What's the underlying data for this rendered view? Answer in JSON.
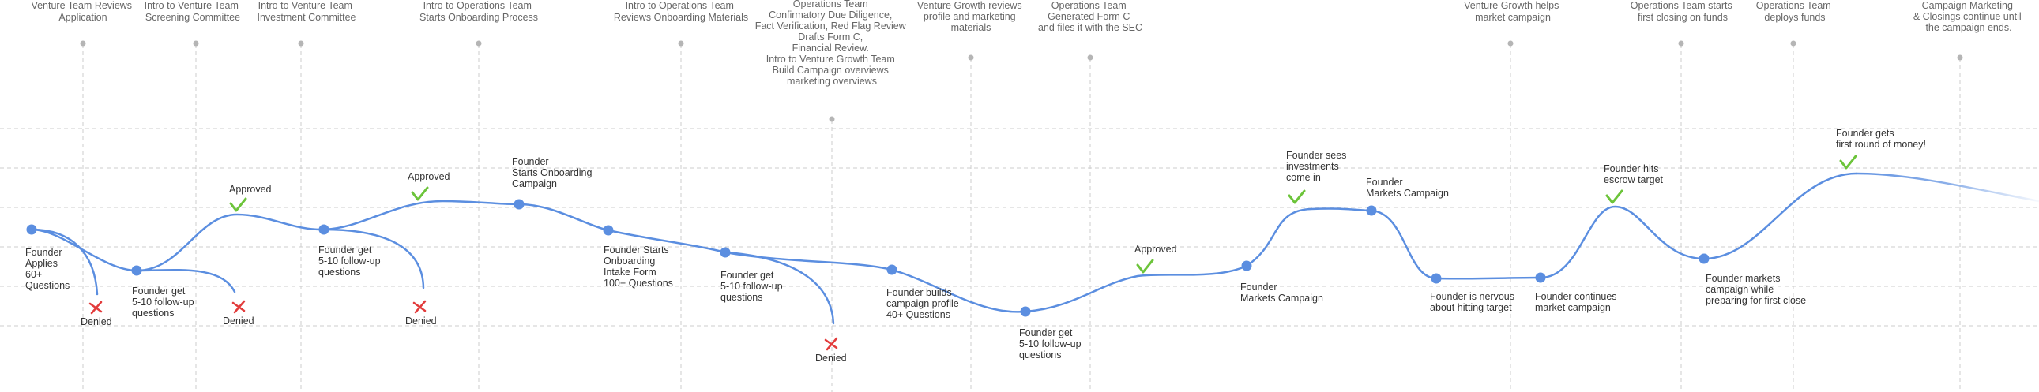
{
  "colors": {
    "line": "#5b8ee0",
    "node": "#5b8ee0",
    "grid": "#c8c8c8",
    "team_dot": "#b5b5b5",
    "check": "#6cc43a",
    "cross": "#e23b3b"
  },
  "team_steps": [
    {
      "id": "t1",
      "lines": [
        "Venture Team Reviews",
        "Application"
      ]
    },
    {
      "id": "t2",
      "lines": [
        "Intro to Venture Team",
        "Screening Committee"
      ]
    },
    {
      "id": "t3",
      "lines": [
        "Intro to Venture Team",
        "Investment Committee"
      ]
    },
    {
      "id": "t4",
      "lines": [
        "Intro to Operations Team",
        "Starts Onboarding Process"
      ]
    },
    {
      "id": "t5",
      "lines": [
        "Intro to Operations Team",
        "Reviews Onboarding Materials"
      ]
    },
    {
      "id": "t6",
      "lines": [
        "Operations Team",
        "Confirmatory Due Diligence,",
        "Fact Verification, Red Flag Review",
        "Drafts Form C,",
        "Financial Review.",
        "",
        "Intro to Venture Growth Team",
        "Build Campaign overviews",
        "marketing overviews"
      ]
    },
    {
      "id": "t7",
      "lines": [
        "Venture Growth reviews",
        "profile and marketing",
        "materials"
      ]
    },
    {
      "id": "t8",
      "lines": [
        "Operations Team",
        "Generated Form C",
        "and files it with the SEC"
      ]
    },
    {
      "id": "t9",
      "lines": [
        "Venture Growth helps",
        "market campaign"
      ]
    },
    {
      "id": "t10",
      "lines": [
        "Operations Team starts",
        "first closing on funds"
      ]
    },
    {
      "id": "t11",
      "lines": [
        "Operations Team",
        "deploys funds"
      ]
    },
    {
      "id": "t12",
      "lines": [
        "Campaign Marketing",
        "& Closings continue until",
        "the campaign ends."
      ]
    }
  ],
  "founder_steps": [
    {
      "id": "f1",
      "lines": [
        "Founder",
        "Applies",
        "60+",
        "Questions"
      ]
    },
    {
      "id": "f2",
      "lines": [
        "Founder get",
        "5-10 follow-up",
        "questions"
      ]
    },
    {
      "id": "f3",
      "lines": [
        "Founder get",
        "5-10 follow-up",
        "questions"
      ]
    },
    {
      "id": "f4",
      "lines": [
        "Founder",
        "Starts Onboarding",
        "Campaign"
      ]
    },
    {
      "id": "f5",
      "lines": [
        "Founder Starts",
        "Onboarding",
        "Intake Form",
        "100+ Questions"
      ]
    },
    {
      "id": "f6",
      "lines": [
        "Founder get",
        "5-10 follow-up",
        "questions"
      ]
    },
    {
      "id": "f7",
      "lines": [
        "Founder builds",
        "campaign profile",
        "40+ Questions"
      ]
    },
    {
      "id": "f8",
      "lines": [
        "Founder get",
        "5-10 follow-up",
        "questions"
      ]
    },
    {
      "id": "f9",
      "lines": [
        "Founder",
        "Markets Campaign"
      ]
    },
    {
      "id": "f10",
      "lines": [
        "Founder sees",
        "investments",
        "come in"
      ]
    },
    {
      "id": "f11",
      "lines": [
        "Founder",
        "Markets Campaign"
      ]
    },
    {
      "id": "f12",
      "lines": [
        "Founder is nervous",
        "about hitting target"
      ]
    },
    {
      "id": "f13",
      "lines": [
        "Founder continues",
        "market campaign"
      ]
    },
    {
      "id": "f14",
      "lines": [
        "Founder hits",
        "escrow target"
      ]
    },
    {
      "id": "f15",
      "lines": [
        "Founder markets",
        "campaign while",
        "preparing for first close"
      ]
    },
    {
      "id": "f16",
      "lines": [
        "Founder gets",
        "first round of money!"
      ]
    }
  ],
  "approvals": [
    {
      "id": "a1",
      "label": "Approved"
    },
    {
      "id": "a2",
      "label": "Approved"
    },
    {
      "id": "a3",
      "label": "Approved"
    }
  ],
  "denials": [
    {
      "id": "d1",
      "label": "Denied"
    },
    {
      "id": "d2",
      "label": "Denied"
    },
    {
      "id": "d3",
      "label": "Denied"
    },
    {
      "id": "d4",
      "label": "Denied"
    }
  ]
}
